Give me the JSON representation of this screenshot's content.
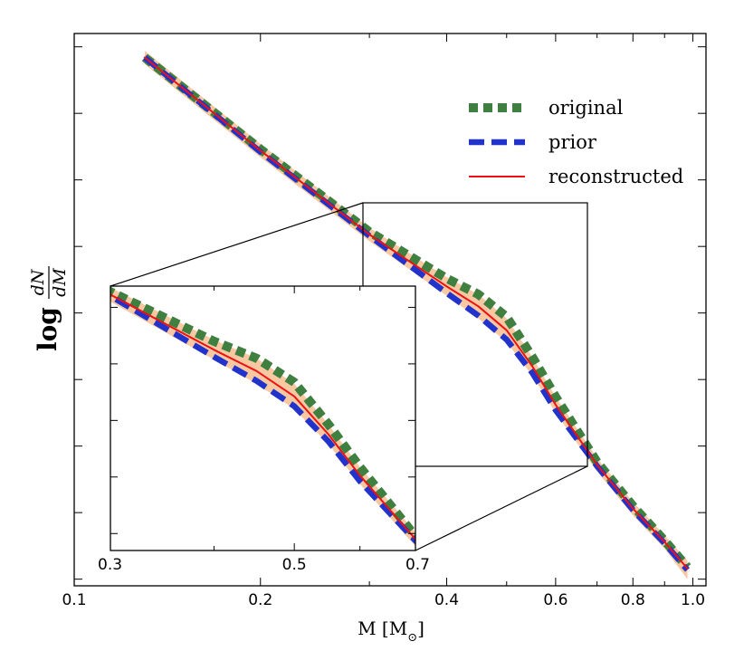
{
  "chart_data": {
    "type": "line",
    "title": "",
    "xlabel": "M [M",
    "xlabel_sub": "⊙",
    "xlabel_close": "]",
    "ylabel": "log",
    "ylabel_num": "dN",
    "ylabel_den": "dM",
    "xscale": "log",
    "xlim": [
      0.1,
      1.05
    ],
    "ylim": [
      -2.55,
      1.6
    ],
    "x_ticks": [
      0.1,
      0.2,
      0.4,
      0.6,
      0.8,
      1.0
    ],
    "x_tick_labels": [
      "0.1",
      "0.2",
      "0.4",
      "0.6",
      "0.8",
      "1.0"
    ],
    "grid": false,
    "legend_position": "top-right",
    "series": [
      {
        "name": "original",
        "color": "#3f7f3f",
        "style": "dotted-thick",
        "x": [
          0.13,
          0.2,
          0.3,
          0.4,
          0.45,
          0.5,
          0.55,
          0.6,
          0.7,
          0.8,
          0.9,
          0.98
        ],
        "y": [
          1.42,
          0.73,
          0.11,
          -0.24,
          -0.36,
          -0.53,
          -0.83,
          -1.13,
          -1.62,
          -1.95,
          -2.21,
          -2.41
        ]
      },
      {
        "name": "prior",
        "color": "#2233cc",
        "style": "dashed",
        "x": [
          0.13,
          0.2,
          0.3,
          0.4,
          0.45,
          0.5,
          0.55,
          0.6,
          0.7,
          0.8,
          0.9,
          0.98
        ],
        "y": [
          1.42,
          0.71,
          0.08,
          -0.35,
          -0.52,
          -0.7,
          -0.95,
          -1.23,
          -1.65,
          -1.98,
          -2.23,
          -2.43
        ]
      },
      {
        "name": "reconstructed",
        "color": "#ee1111",
        "style": "solid",
        "x": [
          0.13,
          0.2,
          0.3,
          0.4,
          0.45,
          0.5,
          0.55,
          0.6,
          0.7,
          0.8,
          0.9,
          0.98
        ],
        "y": [
          1.42,
          0.72,
          0.09,
          -0.3,
          -0.45,
          -0.63,
          -0.9,
          -1.19,
          -1.64,
          -1.97,
          -2.22,
          -2.42
        ]
      }
    ],
    "uncertainty_band": {
      "color": "#f5b583",
      "x": [
        0.13,
        0.2,
        0.3,
        0.4,
        0.45,
        0.5,
        0.55,
        0.6,
        0.7,
        0.8,
        0.9,
        0.98
      ],
      "lower": [
        1.37,
        0.67,
        0.04,
        -0.37,
        -0.54,
        -0.72,
        -0.97,
        -1.25,
        -1.69,
        -2.02,
        -2.27,
        -2.5
      ],
      "upper": [
        1.47,
        0.77,
        0.14,
        -0.23,
        -0.36,
        -0.54,
        -0.83,
        -1.13,
        -1.59,
        -1.92,
        -2.17,
        -2.36
      ]
    },
    "inset": {
      "xlim": [
        0.3,
        0.7
      ],
      "ylim": [
        -1.72,
        0.15
      ],
      "x_ticks": [
        0.3,
        0.5,
        0.7
      ],
      "x_tick_labels": [
        "0.3",
        "0.5",
        "0.7"
      ]
    }
  }
}
